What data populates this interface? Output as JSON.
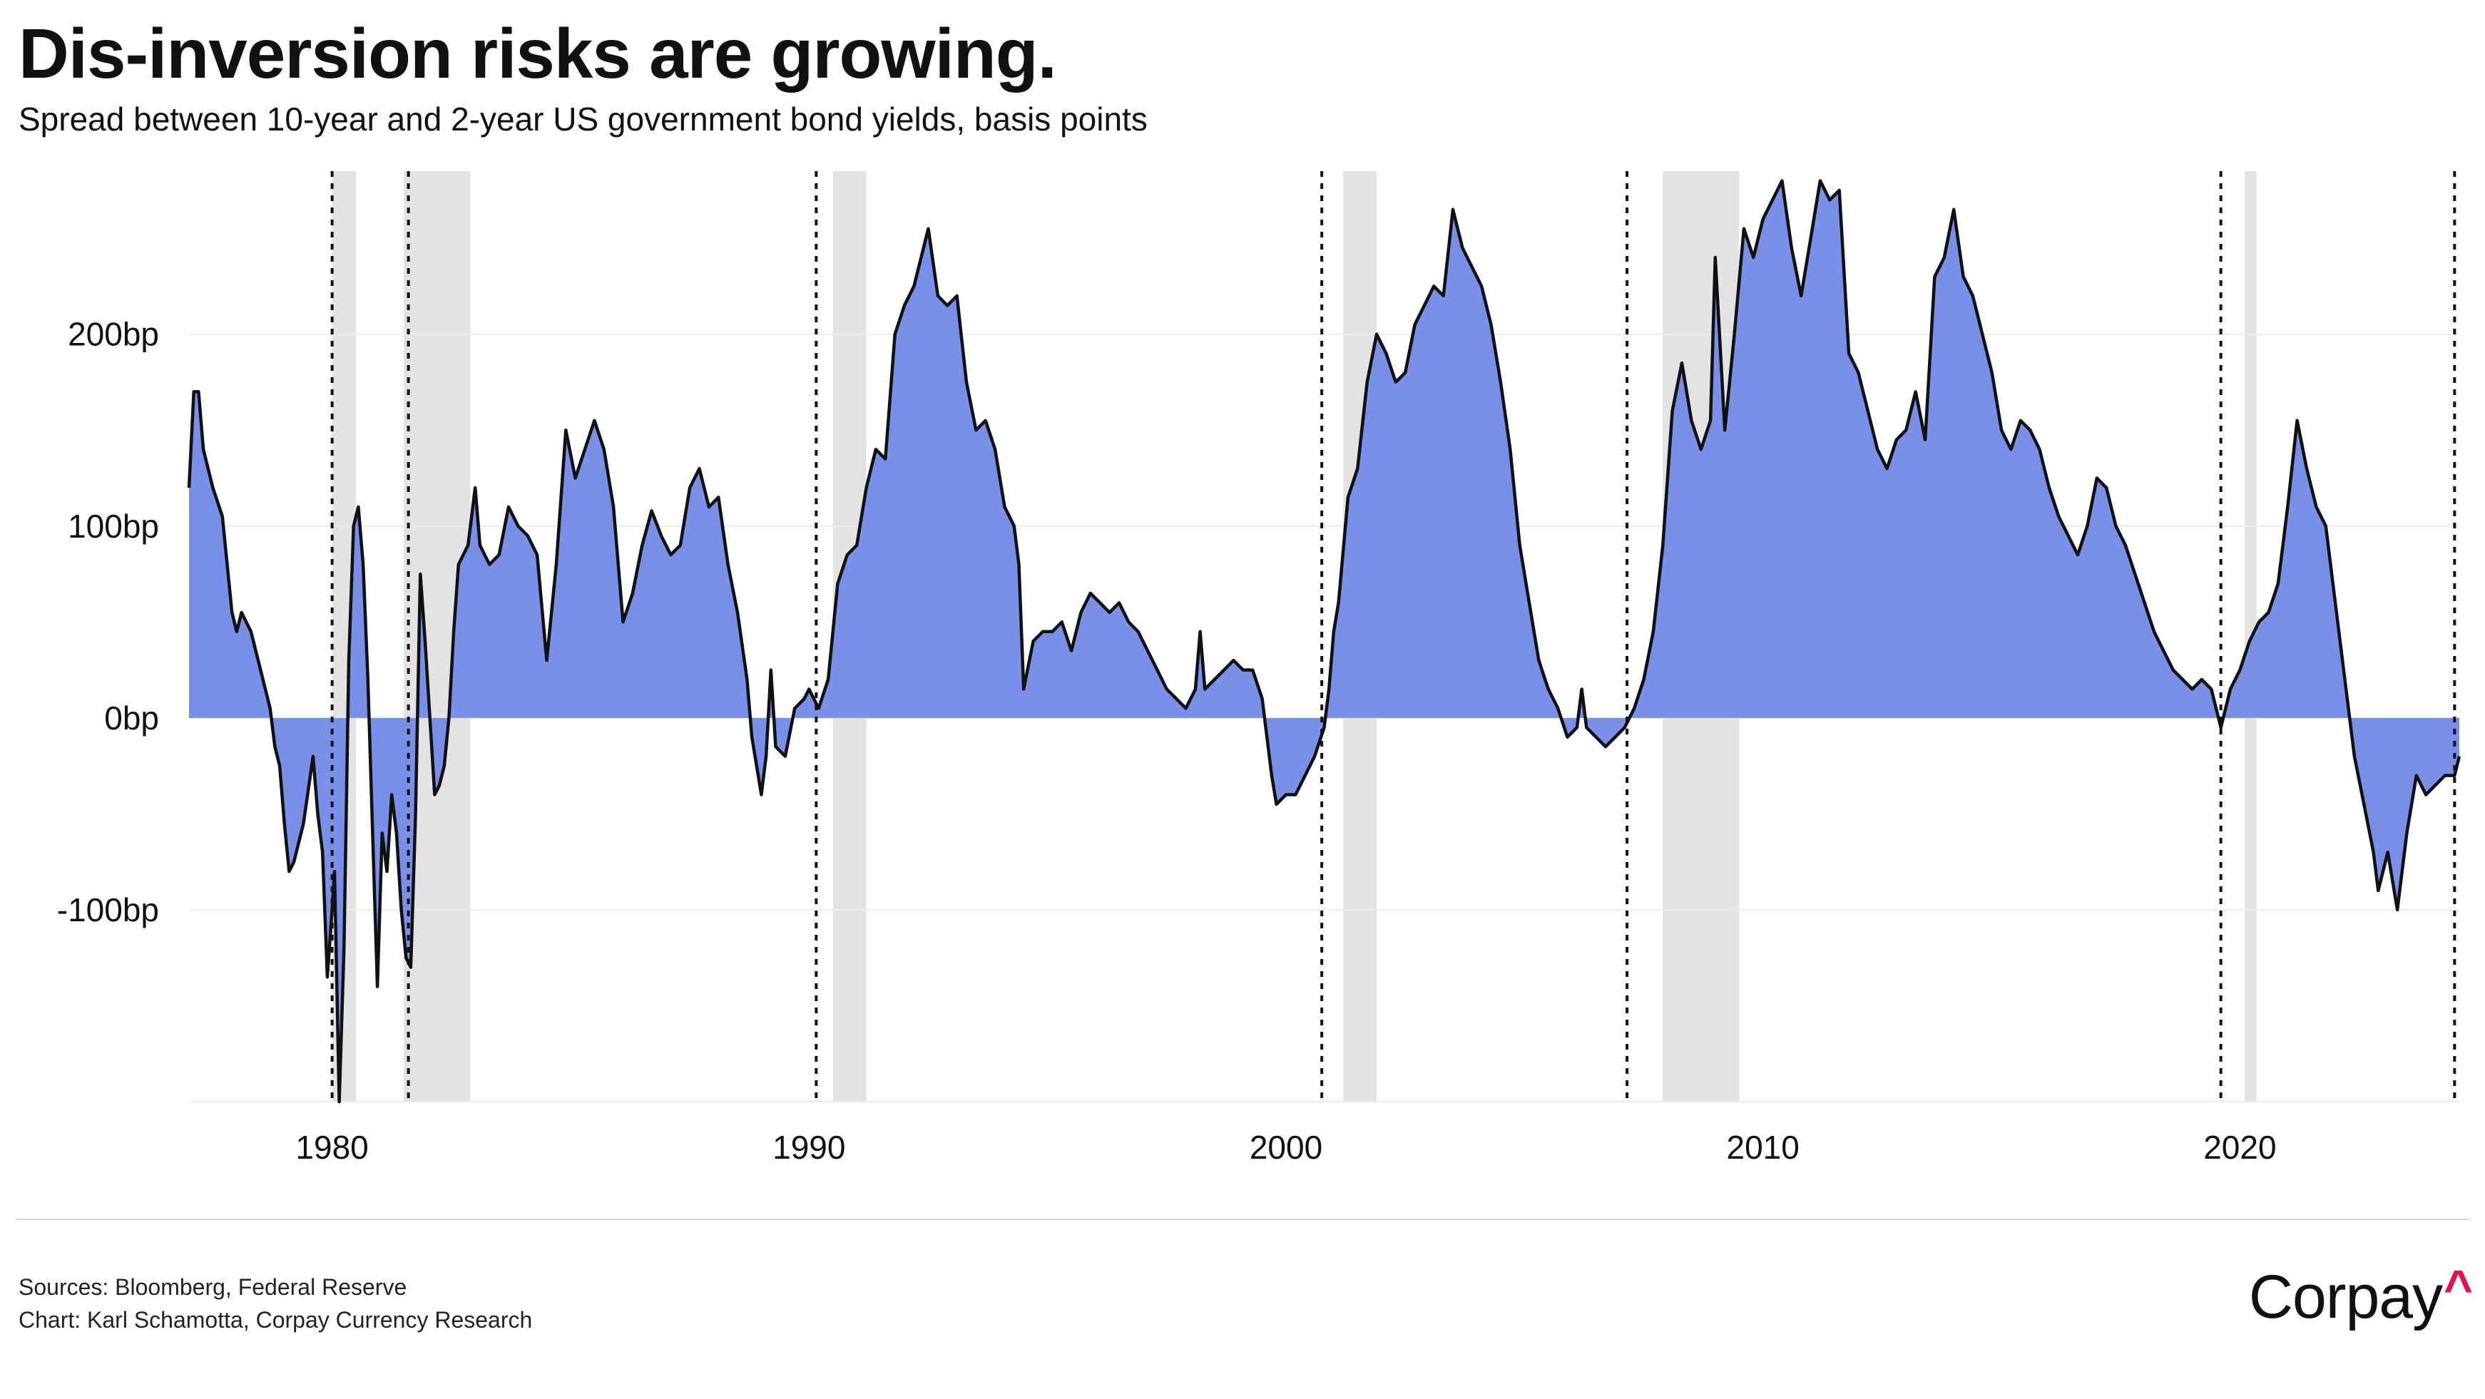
{
  "title": "Dis-inversion risks are growing.",
  "subtitle": "Spread between 10-year and 2-year US government bond yields, basis points",
  "footer": {
    "sources": "Sources: Bloomberg, Federal Reserve",
    "credit": "Chart: Karl Schamotta, Corpay Currency Research"
  },
  "logo": {
    "text": "Corpay",
    "caret": "^"
  },
  "colors": {
    "fill": "#7a8fe8",
    "line": "#111111",
    "recession": "#e3e3e3",
    "accent": "#e0114d"
  },
  "chart_data": {
    "type": "area",
    "title": "Dis-inversion risks are growing.",
    "xlabel": "",
    "ylabel": "basis points",
    "xlim": [
      1977.0,
      2024.6
    ],
    "ylim": [
      -200,
      285
    ],
    "x_ticks": [
      1980,
      1990,
      2000,
      2010,
      2020
    ],
    "y_ticks": [
      {
        "value": 200,
        "label": "200bp"
      },
      {
        "value": 100,
        "label": "100bp"
      },
      {
        "value": 0,
        "label": "0bp"
      },
      {
        "value": -100,
        "label": "-100bp"
      }
    ],
    "grid": "horizontal",
    "recessions": [
      [
        1980.0,
        1980.5
      ],
      [
        1981.5,
        1982.9
      ],
      [
        1990.5,
        1991.2
      ],
      [
        2001.2,
        2001.9
      ],
      [
        2007.9,
        2009.5
      ],
      [
        2020.1,
        2020.35
      ]
    ],
    "inversion_markers": [
      1980.0,
      1981.6,
      1990.15,
      2000.75,
      2007.15,
      2019.6,
      2024.5
    ],
    "series": [
      {
        "name": "10Y-2Y spread (bp)",
        "points": [
          [
            1977.0,
            120
          ],
          [
            1977.1,
            170
          ],
          [
            1977.2,
            170
          ],
          [
            1977.3,
            140
          ],
          [
            1977.5,
            120
          ],
          [
            1977.7,
            105
          ],
          [
            1977.9,
            55
          ],
          [
            1978.0,
            45
          ],
          [
            1978.1,
            55
          ],
          [
            1978.3,
            45
          ],
          [
            1978.5,
            25
          ],
          [
            1978.7,
            5
          ],
          [
            1978.8,
            -15
          ],
          [
            1978.9,
            -25
          ],
          [
            1979.0,
            -55
          ],
          [
            1979.1,
            -80
          ],
          [
            1979.2,
            -75
          ],
          [
            1979.4,
            -55
          ],
          [
            1979.6,
            -20
          ],
          [
            1979.7,
            -50
          ],
          [
            1979.8,
            -70
          ],
          [
            1979.9,
            -135
          ],
          [
            1980.0,
            -100
          ],
          [
            1980.05,
            -80
          ],
          [
            1980.15,
            -200
          ],
          [
            1980.25,
            -120
          ],
          [
            1980.35,
            30
          ],
          [
            1980.45,
            100
          ],
          [
            1980.55,
            110
          ],
          [
            1980.65,
            80
          ],
          [
            1980.75,
            20
          ],
          [
            1980.85,
            -60
          ],
          [
            1980.95,
            -140
          ],
          [
            1981.05,
            -60
          ],
          [
            1981.15,
            -80
          ],
          [
            1981.25,
            -40
          ],
          [
            1981.35,
            -60
          ],
          [
            1981.45,
            -100
          ],
          [
            1981.55,
            -125
          ],
          [
            1981.65,
            -130
          ],
          [
            1981.75,
            -50
          ],
          [
            1981.85,
            75
          ],
          [
            1981.95,
            40
          ],
          [
            1982.05,
            0
          ],
          [
            1982.15,
            -40
          ],
          [
            1982.25,
            -35
          ],
          [
            1982.35,
            -25
          ],
          [
            1982.45,
            0
          ],
          [
            1982.55,
            45
          ],
          [
            1982.65,
            80
          ],
          [
            1982.75,
            85
          ],
          [
            1982.85,
            90
          ],
          [
            1983.0,
            120
          ],
          [
            1983.1,
            90
          ],
          [
            1983.3,
            80
          ],
          [
            1983.5,
            85
          ],
          [
            1983.7,
            110
          ],
          [
            1983.9,
            100
          ],
          [
            1984.1,
            95
          ],
          [
            1984.3,
            85
          ],
          [
            1984.5,
            30
          ],
          [
            1984.7,
            80
          ],
          [
            1984.9,
            150
          ],
          [
            1985.1,
            125
          ],
          [
            1985.3,
            140
          ],
          [
            1985.5,
            155
          ],
          [
            1985.7,
            140
          ],
          [
            1985.9,
            110
          ],
          [
            1986.1,
            50
          ],
          [
            1986.3,
            65
          ],
          [
            1986.5,
            90
          ],
          [
            1986.7,
            108
          ],
          [
            1986.9,
            95
          ],
          [
            1987.1,
            85
          ],
          [
            1987.3,
            90
          ],
          [
            1987.5,
            120
          ],
          [
            1987.7,
            130
          ],
          [
            1987.9,
            110
          ],
          [
            1988.1,
            115
          ],
          [
            1988.3,
            80
          ],
          [
            1988.5,
            55
          ],
          [
            1988.7,
            20
          ],
          [
            1988.8,
            -10
          ],
          [
            1988.9,
            -25
          ],
          [
            1989.0,
            -40
          ],
          [
            1989.1,
            -20
          ],
          [
            1989.2,
            25
          ],
          [
            1989.3,
            -15
          ],
          [
            1989.5,
            -20
          ],
          [
            1989.7,
            5
          ],
          [
            1989.9,
            10
          ],
          [
            1990.0,
            15
          ],
          [
            1990.2,
            5
          ],
          [
            1990.4,
            20
          ],
          [
            1990.6,
            70
          ],
          [
            1990.8,
            85
          ],
          [
            1991.0,
            90
          ],
          [
            1991.2,
            120
          ],
          [
            1991.4,
            140
          ],
          [
            1991.6,
            135
          ],
          [
            1991.8,
            200
          ],
          [
            1992.0,
            215
          ],
          [
            1992.2,
            225
          ],
          [
            1992.4,
            245
          ],
          [
            1992.5,
            255
          ],
          [
            1992.7,
            220
          ],
          [
            1992.9,
            215
          ],
          [
            1993.1,
            220
          ],
          [
            1993.3,
            175
          ],
          [
            1993.5,
            150
          ],
          [
            1993.7,
            155
          ],
          [
            1993.9,
            140
          ],
          [
            1994.1,
            110
          ],
          [
            1994.3,
            100
          ],
          [
            1994.4,
            80
          ],
          [
            1994.5,
            15
          ],
          [
            1994.7,
            40
          ],
          [
            1994.9,
            45
          ],
          [
            1995.1,
            45
          ],
          [
            1995.3,
            50
          ],
          [
            1995.5,
            35
          ],
          [
            1995.7,
            55
          ],
          [
            1995.9,
            65
          ],
          [
            1996.1,
            60
          ],
          [
            1996.3,
            55
          ],
          [
            1996.5,
            60
          ],
          [
            1996.7,
            50
          ],
          [
            1996.9,
            45
          ],
          [
            1997.1,
            35
          ],
          [
            1997.3,
            25
          ],
          [
            1997.5,
            15
          ],
          [
            1997.7,
            10
          ],
          [
            1997.9,
            5
          ],
          [
            1998.1,
            15
          ],
          [
            1998.2,
            45
          ],
          [
            1998.3,
            15
          ],
          [
            1998.5,
            20
          ],
          [
            1998.7,
            25
          ],
          [
            1998.9,
            30
          ],
          [
            1999.1,
            25
          ],
          [
            1999.3,
            25
          ],
          [
            1999.5,
            10
          ],
          [
            1999.7,
            -30
          ],
          [
            1999.8,
            -45
          ],
          [
            2000.0,
            -40
          ],
          [
            2000.2,
            -40
          ],
          [
            2000.4,
            -30
          ],
          [
            2000.6,
            -20
          ],
          [
            2000.8,
            -5
          ],
          [
            2000.9,
            15
          ],
          [
            2001.0,
            45
          ],
          [
            2001.1,
            60
          ],
          [
            2001.3,
            115
          ],
          [
            2001.5,
            130
          ],
          [
            2001.7,
            175
          ],
          [
            2001.9,
            200
          ],
          [
            2002.1,
            190
          ],
          [
            2002.3,
            175
          ],
          [
            2002.5,
            180
          ],
          [
            2002.7,
            205
          ],
          [
            2002.9,
            215
          ],
          [
            2003.1,
            225
          ],
          [
            2003.3,
            220
          ],
          [
            2003.5,
            265
          ],
          [
            2003.7,
            245
          ],
          [
            2003.9,
            235
          ],
          [
            2004.1,
            225
          ],
          [
            2004.3,
            205
          ],
          [
            2004.5,
            175
          ],
          [
            2004.7,
            140
          ],
          [
            2004.9,
            90
          ],
          [
            2005.1,
            60
          ],
          [
            2005.3,
            30
          ],
          [
            2005.5,
            15
          ],
          [
            2005.7,
            5
          ],
          [
            2005.9,
            -10
          ],
          [
            2006.1,
            -5
          ],
          [
            2006.2,
            15
          ],
          [
            2006.3,
            -5
          ],
          [
            2006.5,
            -10
          ],
          [
            2006.7,
            -15
          ],
          [
            2006.9,
            -10
          ],
          [
            2007.1,
            -5
          ],
          [
            2007.3,
            5
          ],
          [
            2007.5,
            20
          ],
          [
            2007.7,
            45
          ],
          [
            2007.9,
            90
          ],
          [
            2008.1,
            160
          ],
          [
            2008.3,
            185
          ],
          [
            2008.5,
            155
          ],
          [
            2008.7,
            140
          ],
          [
            2008.9,
            155
          ],
          [
            2009.0,
            240
          ],
          [
            2009.2,
            150
          ],
          [
            2009.4,
            200
          ],
          [
            2009.6,
            255
          ],
          [
            2009.8,
            240
          ],
          [
            2010.0,
            260
          ],
          [
            2010.2,
            270
          ],
          [
            2010.4,
            280
          ],
          [
            2010.6,
            245
          ],
          [
            2010.8,
            220
          ],
          [
            2011.0,
            250
          ],
          [
            2011.2,
            280
          ],
          [
            2011.4,
            270
          ],
          [
            2011.6,
            275
          ],
          [
            2011.8,
            190
          ],
          [
            2012.0,
            180
          ],
          [
            2012.2,
            160
          ],
          [
            2012.4,
            140
          ],
          [
            2012.6,
            130
          ],
          [
            2012.8,
            145
          ],
          [
            2013.0,
            150
          ],
          [
            2013.2,
            170
          ],
          [
            2013.4,
            145
          ],
          [
            2013.6,
            230
          ],
          [
            2013.8,
            240
          ],
          [
            2014.0,
            265
          ],
          [
            2014.2,
            230
          ],
          [
            2014.4,
            220
          ],
          [
            2014.6,
            200
          ],
          [
            2014.8,
            180
          ],
          [
            2015.0,
            150
          ],
          [
            2015.2,
            140
          ],
          [
            2015.4,
            155
          ],
          [
            2015.6,
            150
          ],
          [
            2015.8,
            140
          ],
          [
            2016.0,
            120
          ],
          [
            2016.2,
            105
          ],
          [
            2016.4,
            95
          ],
          [
            2016.6,
            85
          ],
          [
            2016.8,
            100
          ],
          [
            2017.0,
            125
          ],
          [
            2017.2,
            120
          ],
          [
            2017.4,
            100
          ],
          [
            2017.6,
            90
          ],
          [
            2017.8,
            75
          ],
          [
            2018.0,
            60
          ],
          [
            2018.2,
            45
          ],
          [
            2018.4,
            35
          ],
          [
            2018.6,
            25
          ],
          [
            2018.8,
            20
          ],
          [
            2019.0,
            15
          ],
          [
            2019.2,
            20
          ],
          [
            2019.4,
            15
          ],
          [
            2019.6,
            -5
          ],
          [
            2019.8,
            15
          ],
          [
            2020.0,
            25
          ],
          [
            2020.2,
            40
          ],
          [
            2020.4,
            50
          ],
          [
            2020.6,
            55
          ],
          [
            2020.8,
            70
          ],
          [
            2021.0,
            110
          ],
          [
            2021.2,
            155
          ],
          [
            2021.4,
            130
          ],
          [
            2021.6,
            110
          ],
          [
            2021.8,
            100
          ],
          [
            2022.0,
            60
          ],
          [
            2022.2,
            20
          ],
          [
            2022.4,
            -20
          ],
          [
            2022.6,
            -45
          ],
          [
            2022.8,
            -70
          ],
          [
            2022.9,
            -90
          ],
          [
            2023.1,
            -70
          ],
          [
            2023.3,
            -100
          ],
          [
            2023.5,
            -60
          ],
          [
            2023.7,
            -30
          ],
          [
            2023.9,
            -40
          ],
          [
            2024.1,
            -35
          ],
          [
            2024.3,
            -30
          ],
          [
            2024.5,
            -30
          ],
          [
            2024.6,
            -20
          ]
        ]
      }
    ]
  }
}
